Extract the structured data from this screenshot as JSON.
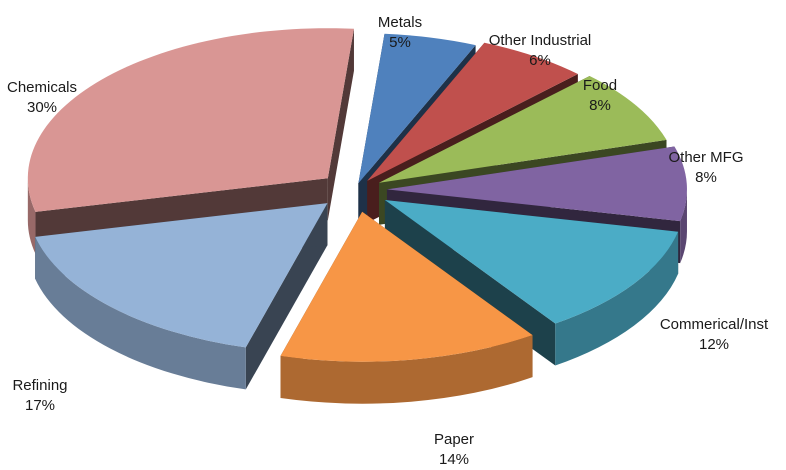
{
  "chart_data": {
    "type": "pie",
    "style": "3d-exploded",
    "title": "",
    "slices": [
      {
        "label": "Metals",
        "value": 5,
        "pct_label": "5%",
        "color": "#4f81bd"
      },
      {
        "label": "Other Industrial",
        "value": 6,
        "pct_label": "6%",
        "color": "#c0504d"
      },
      {
        "label": "Food",
        "value": 8,
        "pct_label": "8%",
        "color": "#9bbb59"
      },
      {
        "label": "Other MFG",
        "value": 8,
        "pct_label": "8%",
        "color": "#8064a2"
      },
      {
        "label": "Commerical/Inst",
        "value": 12,
        "pct_label": "12%",
        "color": "#4bacc6"
      },
      {
        "label": "Paper",
        "value": 14,
        "pct_label": "14%",
        "color": "#f79646"
      },
      {
        "label": "Refining",
        "value": 17,
        "pct_label": "17%",
        "color": "#95b3d7"
      },
      {
        "label": "Chemicals",
        "value": 30,
        "pct_label": "30%",
        "color": "#d99694"
      }
    ]
  }
}
